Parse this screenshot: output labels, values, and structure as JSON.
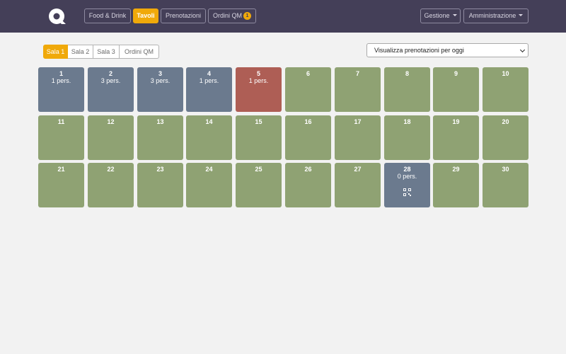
{
  "nav": {
    "items": [
      {
        "label": "Food & Drink"
      },
      {
        "label": "Tavoli"
      },
      {
        "label": "Prenotazioni"
      },
      {
        "label": "Ordini QM",
        "badge": "1"
      }
    ],
    "right": [
      {
        "label": "Gestione"
      },
      {
        "label": "Amministrazione"
      }
    ]
  },
  "rooms": {
    "tabs": [
      {
        "label": "Sala 1"
      },
      {
        "label": "Sala 2"
      },
      {
        "label": "Sala 3"
      },
      {
        "label": "Ordini QM"
      }
    ]
  },
  "view_select": {
    "value": "Visualizza prenotazioni per oggi"
  },
  "tables": [
    {
      "number": "1",
      "people": "1 pers.",
      "status": "occupied"
    },
    {
      "number": "2",
      "people": "3 pers.",
      "status": "occupied"
    },
    {
      "number": "3",
      "people": "3 pers.",
      "status": "occupied"
    },
    {
      "number": "4",
      "people": "1 pers.",
      "status": "occupied"
    },
    {
      "number": "5",
      "people": "1 pers.",
      "status": "reserved"
    },
    {
      "number": "6",
      "status": "free"
    },
    {
      "number": "7",
      "status": "free"
    },
    {
      "number": "8",
      "status": "free"
    },
    {
      "number": "9",
      "status": "free"
    },
    {
      "number": "10",
      "status": "free"
    },
    {
      "number": "11",
      "status": "free"
    },
    {
      "number": "12",
      "status": "free"
    },
    {
      "number": "13",
      "status": "free"
    },
    {
      "number": "14",
      "status": "free"
    },
    {
      "number": "15",
      "status": "free"
    },
    {
      "number": "16",
      "status": "free"
    },
    {
      "number": "17",
      "status": "free"
    },
    {
      "number": "18",
      "status": "free"
    },
    {
      "number": "19",
      "status": "free"
    },
    {
      "number": "20",
      "status": "free"
    },
    {
      "number": "21",
      "status": "free"
    },
    {
      "number": "22",
      "status": "free"
    },
    {
      "number": "23",
      "status": "free"
    },
    {
      "number": "24",
      "status": "free"
    },
    {
      "number": "25",
      "status": "free"
    },
    {
      "number": "26",
      "status": "free"
    },
    {
      "number": "27",
      "status": "free"
    },
    {
      "number": "28",
      "people": "0 pers.",
      "status": "occupied",
      "icon": "qr-code-icon"
    },
    {
      "number": "29",
      "status": "free"
    },
    {
      "number": "30",
      "status": "free"
    }
  ],
  "colors": {
    "header_bg": "#443f58",
    "accent": "#f0a90a",
    "free": "#8fa273",
    "occupied": "#6b7a8e",
    "reserved": "#ae5e55"
  }
}
